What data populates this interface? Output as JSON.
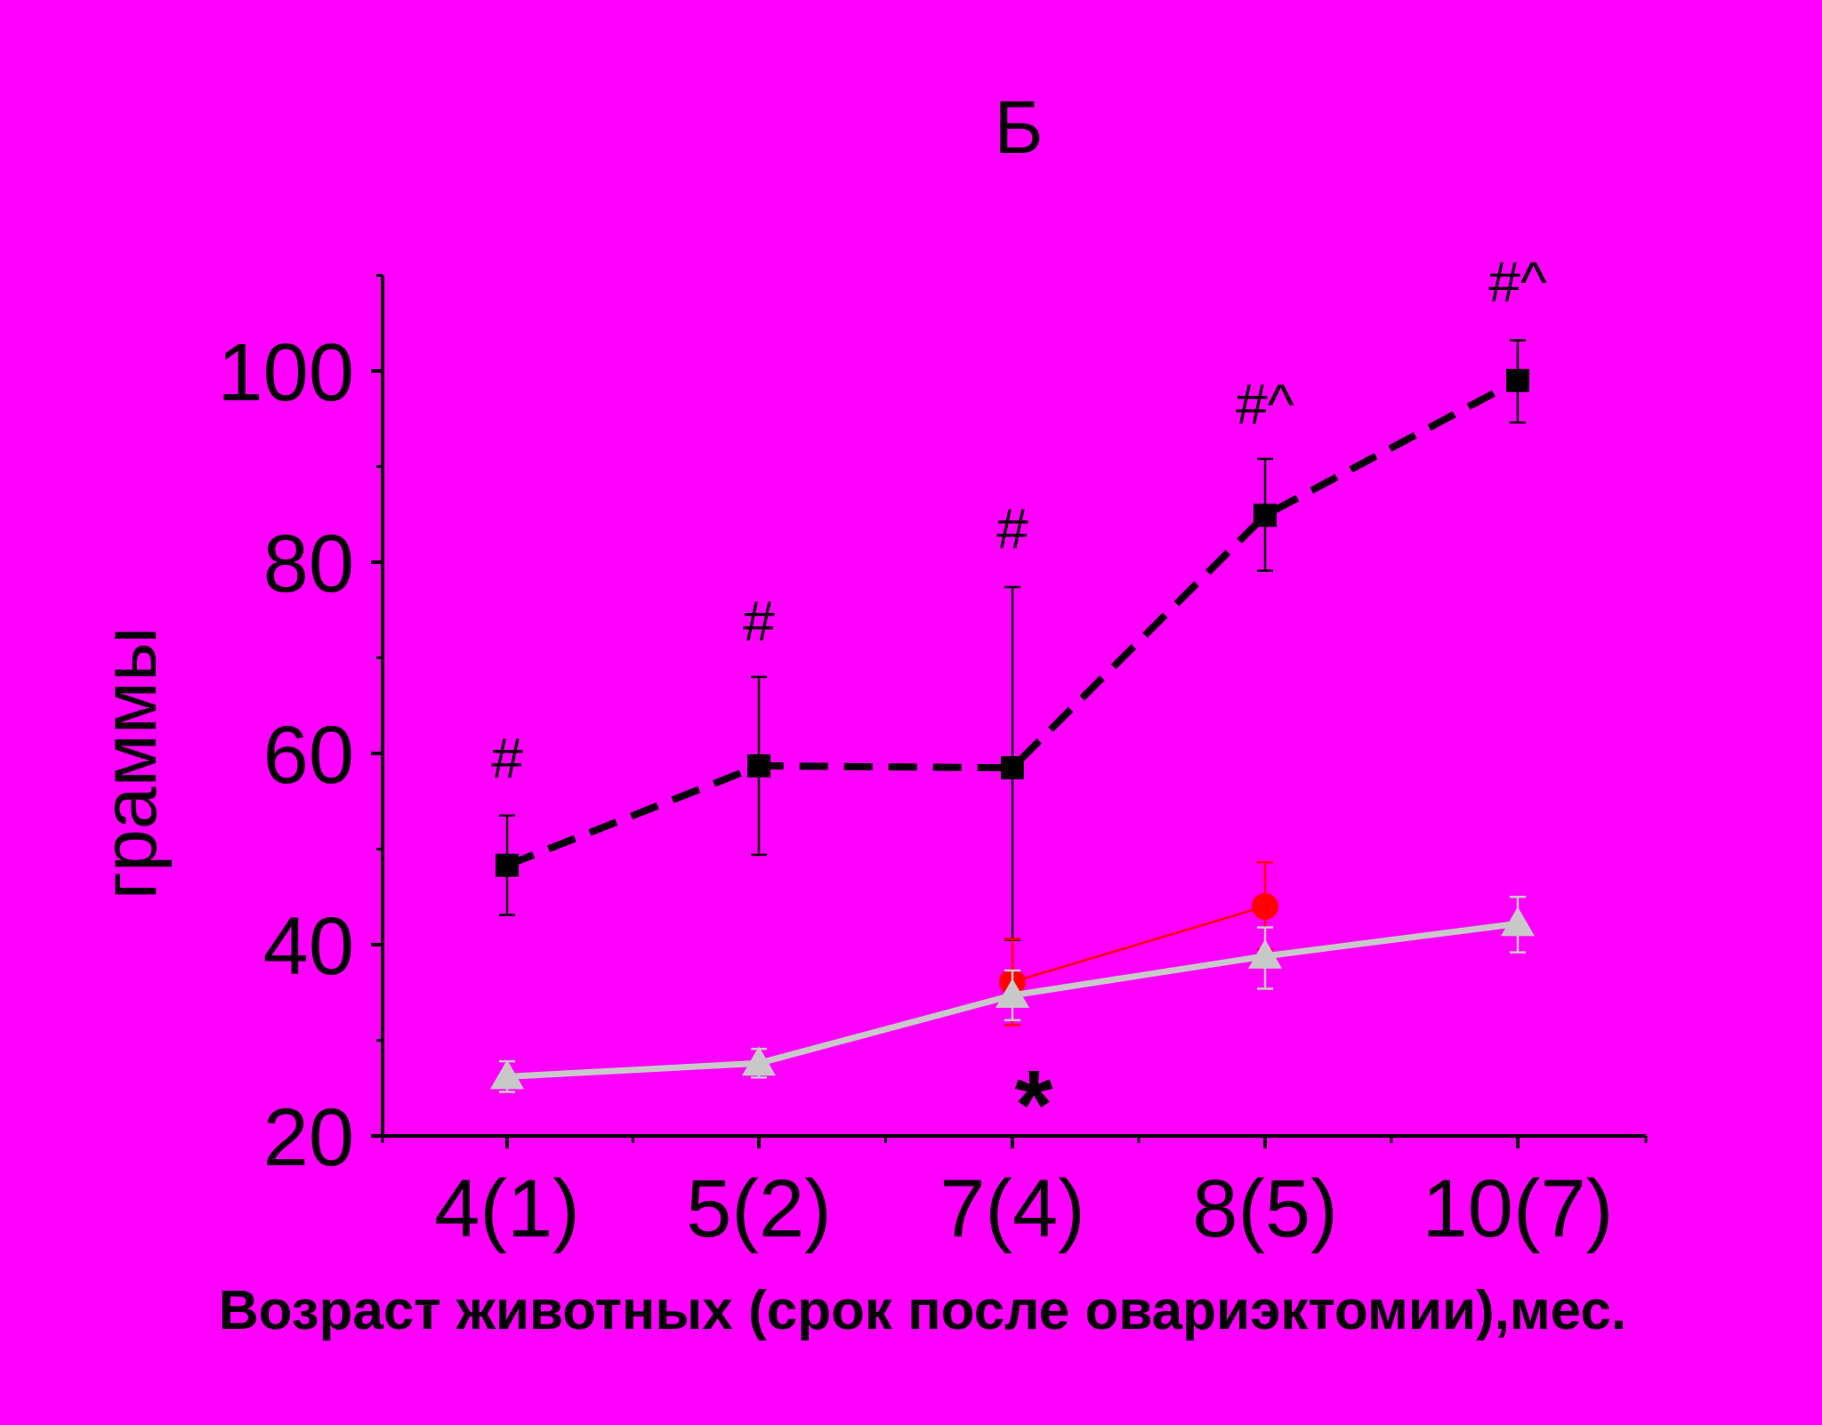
{
  "chart_data": {
    "type": "line",
    "title": "Б",
    "xlabel": "Возраст животных (срок после овариэктомии),мес.",
    "ylabel": "граммы",
    "categories": [
      "4(1)",
      "5(2)",
      "7(4)",
      "8(5)",
      "10(7)"
    ],
    "ylim": [
      20,
      110
    ],
    "yticks": [
      20,
      40,
      60,
      80,
      100
    ],
    "grid": false,
    "series": [
      {
        "color": "#000000",
        "line": "dashed",
        "marker": "square",
        "values": [
          48.3,
          58.7,
          58.5,
          84.9,
          99.0
        ],
        "err_low": [
          5.2,
          9.3,
          18.0,
          5.8,
          4.4
        ],
        "err_high": [
          5.2,
          9.3,
          18.9,
          5.9,
          4.2
        ]
      },
      {
        "color": "#ff0000",
        "line": "solid-thin",
        "marker": "circle",
        "values": [
          null,
          null,
          36.1,
          44.0,
          null
        ],
        "err_low": [
          null,
          null,
          4.5,
          4.5,
          null
        ],
        "err_high": [
          null,
          null,
          4.5,
          4.6,
          null
        ]
      },
      {
        "color": "#c8c8c8",
        "line": "solid",
        "marker": "triangle",
        "values": [
          26.2,
          27.6,
          34.7,
          38.8,
          42.2
        ],
        "err_low": [
          1.6,
          1.5,
          2.6,
          3.4,
          3.0
        ],
        "err_high": [
          1.6,
          1.5,
          2.6,
          3.0,
          2.8
        ]
      }
    ],
    "annotations": [
      {
        "text": "#",
        "x": "4(1)",
        "y": 59.5
      },
      {
        "text": "#",
        "x": "5(2)",
        "y": 73.8
      },
      {
        "text": "#",
        "x": "7(4)",
        "y": 83.5
      },
      {
        "text": "#^",
        "x": "8(5)",
        "y": 96.5
      },
      {
        "text": "#^",
        "x": "10(7)",
        "y": 109.3
      },
      {
        "text": "*",
        "x": "7(4)",
        "y": 25.5
      }
    ]
  }
}
